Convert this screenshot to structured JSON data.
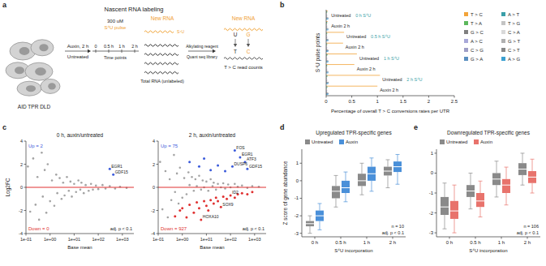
{
  "panel_labels": [
    "a",
    "b",
    "c",
    "d",
    "e"
  ],
  "diagram": {
    "title": "Nascent RNA labeling",
    "cell_line": "AID TPR DLD",
    "treatment": "Auxin, 2 h",
    "control": "Untreated",
    "dose": "300 uM",
    "pulse": "S⁴U pulse",
    "time_points": [
      "0",
      "0.5 h",
      "1 h",
      "2 h"
    ],
    "time_label": "Time points",
    "new_rna": "New RNA",
    "label_base": "S⁴U",
    "total_rna": "Total RNA (unlabeled)",
    "reagent": "Alkylating reagent",
    "library": "Quant seq library",
    "new_rna_2": "New RNA",
    "top_bases": [
      "U",
      "G"
    ],
    "readout_bases": [
      "T",
      "C"
    ],
    "readout": "T > C read counts"
  },
  "chart_data": [
    {
      "type": "bar",
      "orientation": "horizontal",
      "xlabel": "Percentage of overall T > C conversions rates per UTR",
      "ylabel": "S⁴U pulse points",
      "categories": [
        "Untreated",
        "Auxin 2 h",
        "Untreated",
        "Auxin 2 h",
        "Untreated",
        "Auxin 2 h",
        "Untreated",
        "Auxin 2 h"
      ],
      "annotations": [
        "0 h S⁴U",
        "0.5 h S⁴U",
        "1 h S⁴U",
        "2 h S⁴U"
      ],
      "xlim": [
        0,
        2.5
      ],
      "xticks": [
        0,
        0.5,
        1,
        1.5,
        2,
        2.5
      ],
      "legend": "right",
      "series": [
        {
          "name": "T > C",
          "color": "#f2a43a",
          "values": [
            0.03,
            0.03,
            0.35,
            0.33,
            0.6,
            0.55,
            1.05,
            1.0
          ]
        },
        {
          "name": "A > T",
          "color": "#3a9fa8",
          "values": [
            0.02,
            0.02,
            0.02,
            0.02,
            0.03,
            0.02,
            0.03,
            0.03
          ]
        },
        {
          "name": "T > A",
          "color": "#5cb85c",
          "values": [
            0.02,
            0.02,
            0.02,
            0.02,
            0.02,
            0.02,
            0.02,
            0.02
          ]
        },
        {
          "name": "T > G",
          "color": "#c4c4c4",
          "values": [
            0.01,
            0.01,
            0.01,
            0.01,
            0.01,
            0.01,
            0.01,
            0.01
          ]
        },
        {
          "name": "G > C",
          "color": "#7f7f7f",
          "values": [
            0.01,
            0.01,
            0.01,
            0.01,
            0.01,
            0.01,
            0.01,
            0.01
          ]
        },
        {
          "name": "C > A",
          "color": "#d9d9d9",
          "values": [
            0.02,
            0.02,
            0.02,
            0.02,
            0.02,
            0.02,
            0.02,
            0.02
          ]
        },
        {
          "name": "A > C",
          "color": "#a8a8d8",
          "values": [
            0.02,
            0.02,
            0.02,
            0.02,
            0.02,
            0.02,
            0.02,
            0.02
          ]
        },
        {
          "name": "G > T",
          "color": "#b0b0b0",
          "values": [
            0.02,
            0.02,
            0.02,
            0.02,
            0.02,
            0.02,
            0.02,
            0.02
          ]
        },
        {
          "name": "C > G",
          "color": "#9e9ec6",
          "values": [
            0.01,
            0.01,
            0.01,
            0.01,
            0.01,
            0.01,
            0.01,
            0.01
          ]
        },
        {
          "name": "C > T",
          "color": "#888888",
          "values": [
            0.04,
            0.04,
            0.04,
            0.04,
            0.04,
            0.04,
            0.05,
            0.04
          ]
        },
        {
          "name": "G > A",
          "color": "#5a8fc0",
          "values": [
            0.05,
            0.05,
            0.05,
            0.05,
            0.05,
            0.05,
            0.05,
            0.05
          ]
        },
        {
          "name": "A > G",
          "color": "#3ba0d0",
          "values": [
            0.04,
            0.04,
            0.04,
            0.04,
            0.04,
            0.04,
            0.04,
            0.04
          ]
        }
      ]
    },
    {
      "type": "scatter",
      "log": "x",
      "title": "0 h, auxin/untreated",
      "xlabel": "Base mean",
      "ylabel": "Log2FC",
      "subtitle": "adj. p < 0.1",
      "reference_line": 0,
      "xlim": [
        0.1,
        3000
      ],
      "xticks": [
        {
          "value": 0.1,
          "label": "1e-01"
        },
        {
          "value": 1,
          "label": "1e+00"
        },
        {
          "value": 10,
          "label": "1e+01"
        },
        {
          "value": 100,
          "label": "1e+02"
        },
        {
          "value": 1000,
          "label": "1e+03"
        }
      ],
      "ylim": [
        -4,
        4
      ],
      "yticks": [
        -4,
        -2,
        0,
        2,
        4
      ],
      "series": [
        {
          "color": "#8c8c8c",
          "x": [
            0.12,
            0.15,
            0.2,
            0.25,
            0.3,
            0.35,
            0.45,
            0.5,
            0.6,
            0.7,
            0.8,
            1,
            1.2,
            1.5,
            1.8,
            2,
            2.5,
            3,
            3.5,
            4,
            5,
            6,
            7,
            8,
            10,
            12,
            15,
            18,
            20,
            25,
            30,
            40,
            50,
            60,
            80,
            100,
            150,
            200,
            300,
            500,
            800,
            1500
          ],
          "values": [
            1.8,
            -2.1,
            2.5,
            -1.5,
            0.9,
            -2.8,
            3.0,
            -0.8,
            1.5,
            -2.2,
            2.0,
            -1.2,
            0.6,
            -1.6,
            1.1,
            -0.5,
            0.8,
            -1.0,
            0.4,
            -0.7,
            0.9,
            -0.3,
            0.5,
            -0.8,
            0.3,
            -0.4,
            0.6,
            -0.2,
            0.4,
            -0.5,
            0.2,
            -0.3,
            0.3,
            -0.2,
            0.15,
            -0.15,
            0.2,
            -0.1,
            0.1,
            -0.1,
            0.05,
            -0.05
          ]
        },
        {
          "name": "Up = 2",
          "color": "#3b5bdb",
          "x": [
            300,
            420
          ],
          "values": [
            1.6,
            1.1
          ]
        },
        {
          "name": "Down = 0",
          "color": "#e03131",
          "x": [],
          "values": []
        }
      ],
      "annotations": [
        {
          "text": "EGR1",
          "x": 300,
          "y": 1.6
        },
        {
          "text": "GDF15",
          "x": 420,
          "y": 1.1
        }
      ]
    },
    {
      "type": "scatter",
      "log": "x",
      "title": "2 h, auxin/untreated",
      "xlabel": "Base mean",
      "subtitle": "adj. p < 0.1",
      "reference_line": 0,
      "xlim": [
        0.1,
        3000
      ],
      "xticks": [
        {
          "value": 0.1,
          "label": "1e-01"
        },
        {
          "value": 1,
          "label": "1e+00"
        },
        {
          "value": 10,
          "label": "1e+01"
        },
        {
          "value": 100,
          "label": "1e+02"
        },
        {
          "value": 1000,
          "label": "1e+03"
        }
      ],
      "ylim": [
        -4,
        4
      ],
      "yticks": [
        -4,
        -2,
        0,
        2,
        4
      ],
      "series": [
        {
          "color": "#8c8c8c",
          "x": [
            0.12,
            0.15,
            0.2,
            0.25,
            0.3,
            0.35,
            0.45,
            0.5,
            0.6,
            0.7,
            0.8,
            1,
            1.2,
            1.5,
            1.8,
            2,
            2.5,
            3,
            3.5,
            4,
            5,
            6,
            7,
            8,
            10,
            12,
            15,
            18,
            20,
            25,
            30,
            40,
            50,
            60,
            80,
            100,
            150,
            200,
            300,
            500,
            800,
            1500
          ],
          "values": [
            2.2,
            -1.9,
            1.4,
            -2.6,
            0.7,
            -1.1,
            2.8,
            -0.4,
            1.2,
            -1.4,
            1.7,
            -0.9,
            0.8,
            -0.6,
            1.3,
            0.2,
            0.9,
            -0.3,
            0.7,
            0.1,
            1.0,
            -0.2,
            0.6,
            0.0,
            0.5,
            -0.3,
            0.7,
            0.1,
            0.4,
            -0.2,
            0.3,
            0.0,
            0.35,
            -0.1,
            0.25,
            0.0,
            0.3,
            0.05,
            0.15,
            -0.05,
            0.1,
            0.05
          ]
        },
        {
          "name": "Up = 75",
          "color": "#3b5bdb",
          "x": [
            2,
            5,
            8,
            15,
            30,
            60,
            120,
            150,
            250,
            400,
            500
          ],
          "values": [
            2.2,
            1.8,
            2.5,
            1.5,
            1.9,
            1.4,
            1.8,
            3.2,
            2.6,
            2.2,
            1.6
          ]
        },
        {
          "name": "Down = 927",
          "color": "#e03131",
          "x": [
            0.5,
            0.8,
            1,
            1.5,
            2,
            3,
            4,
            5,
            6,
            8,
            10,
            12,
            15,
            20,
            25,
            30,
            40,
            50,
            70,
            100,
            150,
            200,
            300,
            500,
            800
          ],
          "values": [
            -2.5,
            -2.0,
            -1.8,
            -2.6,
            -1.5,
            -2.2,
            -1.3,
            -1.8,
            -2.8,
            -1.2,
            -1.6,
            -2.0,
            -1.1,
            -1.4,
            -0.9,
            -1.2,
            -1.7,
            -0.8,
            -1.0,
            -0.7,
            -0.9,
            -0.6,
            -0.5,
            -0.6,
            -0.4
          ]
        }
      ],
      "annotations": [
        {
          "text": "FOS",
          "x": 150,
          "y": 3.2
        },
        {
          "text": "EGR1",
          "x": 250,
          "y": 2.6
        },
        {
          "text": "ATF3",
          "x": 400,
          "y": 2.2
        },
        {
          "text": "DUSP6",
          "x": 120,
          "y": 1.8
        },
        {
          "text": "GDF15",
          "x": 500,
          "y": 1.6
        },
        {
          "text": "HOXA10",
          "x": 6,
          "y": -2.8
        },
        {
          "text": "SOX9",
          "x": 40,
          "y": -1.7
        },
        {
          "text": "ID2",
          "x": 100,
          "y": -0.7
        }
      ]
    },
    {
      "type": "box",
      "title": "Upregulated TPR-specific genes",
      "ylabel": "Z score of gene abundance",
      "xlabel": "S⁴U incorporation",
      "categories": [
        "0 h",
        "0.5 h",
        "1 h",
        "2 h"
      ],
      "ylim": [
        -3.2,
        1.8
      ],
      "yticks": [
        -3,
        -2,
        -1,
        0,
        1
      ],
      "legend": "top",
      "annotations": [
        "n = 10",
        "adj. p < 0.1"
      ],
      "series": [
        {
          "name": "Untreated",
          "color": "#8a8a8a",
          "whisker_low": [
            -3.0,
            -1.5,
            -0.8,
            -0.4
          ],
          "q1": [
            -2.6,
            -1.0,
            -0.3,
            0.3
          ],
          "median": [
            -2.45,
            -0.6,
            0.0,
            0.55
          ],
          "q3": [
            -2.3,
            -0.3,
            0.4,
            0.8
          ],
          "whisker_high": [
            -2.0,
            0.3,
            1.0,
            1.2
          ]
        },
        {
          "name": "Auxin",
          "color": "#4a90d9",
          "whisker_low": [
            -2.8,
            -1.2,
            -0.6,
            -0.2
          ],
          "q1": [
            -2.3,
            -0.7,
            0.0,
            0.5
          ],
          "median": [
            -2.0,
            -0.4,
            0.4,
            0.8
          ],
          "q3": [
            -1.7,
            0.0,
            0.8,
            1.1
          ],
          "whisker_high": [
            -1.3,
            0.5,
            1.3,
            1.5
          ]
        }
      ]
    },
    {
      "type": "box",
      "title": "Downregulated TPR-specific genes",
      "xlabel": "S⁴U incorporation",
      "categories": [
        "0 h",
        "0.5 h",
        "1 h",
        "2 h"
      ],
      "ylim": [
        -3.2,
        1.2
      ],
      "yticks": [
        -3,
        -2,
        -1,
        0,
        1
      ],
      "legend": "top",
      "annotations": [
        "n = 106",
        "adj. p < 0.1"
      ],
      "series": [
        {
          "name": "Untreated",
          "color": "#8a8a8a",
          "whisker_low": [
            -2.8,
            -1.8,
            -1.2,
            -0.6
          ],
          "q1": [
            -2.1,
            -1.2,
            -0.6,
            -0.1
          ],
          "median": [
            -1.7,
            -0.9,
            -0.3,
            0.2
          ],
          "q3": [
            -1.2,
            -0.6,
            0.0,
            0.5
          ],
          "whisker_high": [
            -0.5,
            0.0,
            0.6,
            1.0
          ]
        },
        {
          "name": "Auxin",
          "color": "#e8736c",
          "whisker_low": [
            -3.0,
            -2.2,
            -1.6,
            -1.0
          ],
          "q1": [
            -2.3,
            -1.7,
            -1.0,
            -0.5
          ],
          "median": [
            -1.9,
            -1.4,
            -0.6,
            -0.2
          ],
          "q3": [
            -1.4,
            -1.0,
            -0.3,
            0.1
          ],
          "whisker_high": [
            -0.6,
            -0.4,
            0.3,
            0.7
          ]
        }
      ]
    }
  ]
}
